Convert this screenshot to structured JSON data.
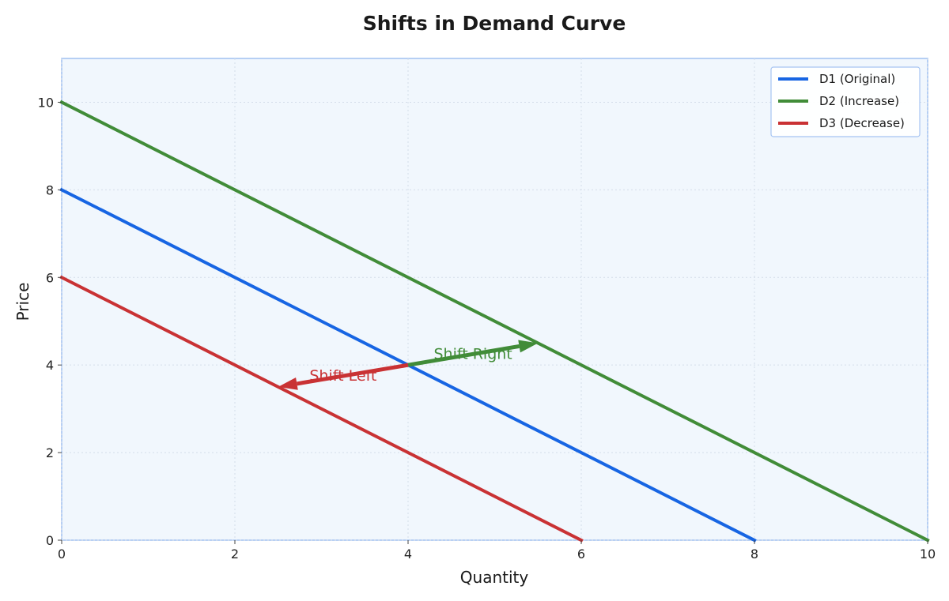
{
  "chart_data": {
    "type": "line",
    "title": "Shifts in Demand Curve",
    "xlabel": "Quantity",
    "ylabel": "Price",
    "xlim": [
      0,
      10
    ],
    "ylim": [
      0,
      11
    ],
    "xticks": [
      0,
      2,
      4,
      6,
      8,
      10
    ],
    "yticks": [
      0,
      2,
      4,
      6,
      8,
      10
    ],
    "grid": true,
    "legend_position": "top-right",
    "series": [
      {
        "name": "D1 (Original)",
        "color": "#1765e3",
        "x": [
          0,
          8
        ],
        "y": [
          8,
          0
        ]
      },
      {
        "name": "D2 (Increase)",
        "color": "#418c38",
        "x": [
          0,
          10
        ],
        "y": [
          10,
          0
        ]
      },
      {
        "name": "D3 (Decrease)",
        "color": "#c93234",
        "x": [
          0,
          6
        ],
        "y": [
          6,
          0
        ]
      }
    ],
    "annotations": [
      {
        "text": "Shift Right",
        "color": "#418c38",
        "from": [
          4,
          4
        ],
        "to": [
          5.5,
          4.5
        ]
      },
      {
        "text": "Shift Left",
        "color": "#c93234",
        "from": [
          4,
          4
        ],
        "to": [
          2.5,
          3.5
        ]
      }
    ]
  }
}
